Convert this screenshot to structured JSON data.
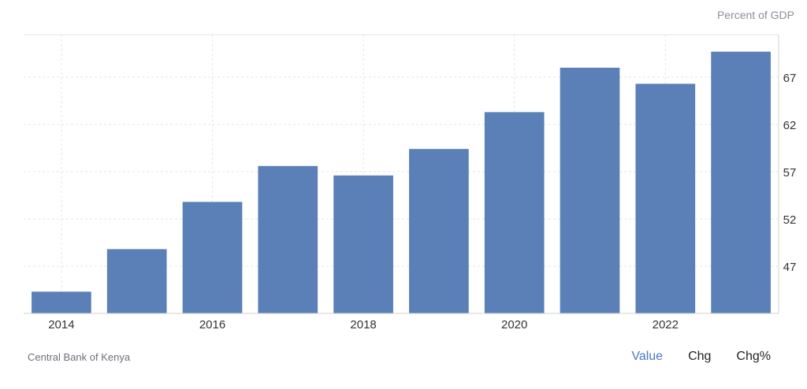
{
  "unit_label": "Percent of GDP",
  "source": "Central Bank of Kenya",
  "toggles": {
    "value": "Value",
    "chg": "Chg",
    "chg_pct": "Chg%"
  },
  "colors": {
    "bar": "#5a80b7",
    "grid": "#e6e6e6",
    "axis": "#d0d0d0",
    "tick": "#333333"
  },
  "chart_data": {
    "type": "bar",
    "categories": [
      "2014",
      "2015",
      "2016",
      "2017",
      "2018",
      "2019",
      "2020",
      "2021",
      "2022",
      "2023"
    ],
    "values": [
      44.3,
      48.8,
      53.8,
      57.6,
      56.6,
      59.4,
      63.3,
      68.0,
      66.3,
      69.7
    ],
    "x_tick_labels": [
      "2014",
      "2016",
      "2018",
      "2020",
      "2022"
    ],
    "y_ticks": [
      47,
      52,
      57,
      62,
      67
    ],
    "ylim": [
      42,
      71.5
    ],
    "title": "",
    "xlabel": "",
    "ylabel": "Percent of GDP",
    "grid": true,
    "y_axis_position": "right"
  }
}
